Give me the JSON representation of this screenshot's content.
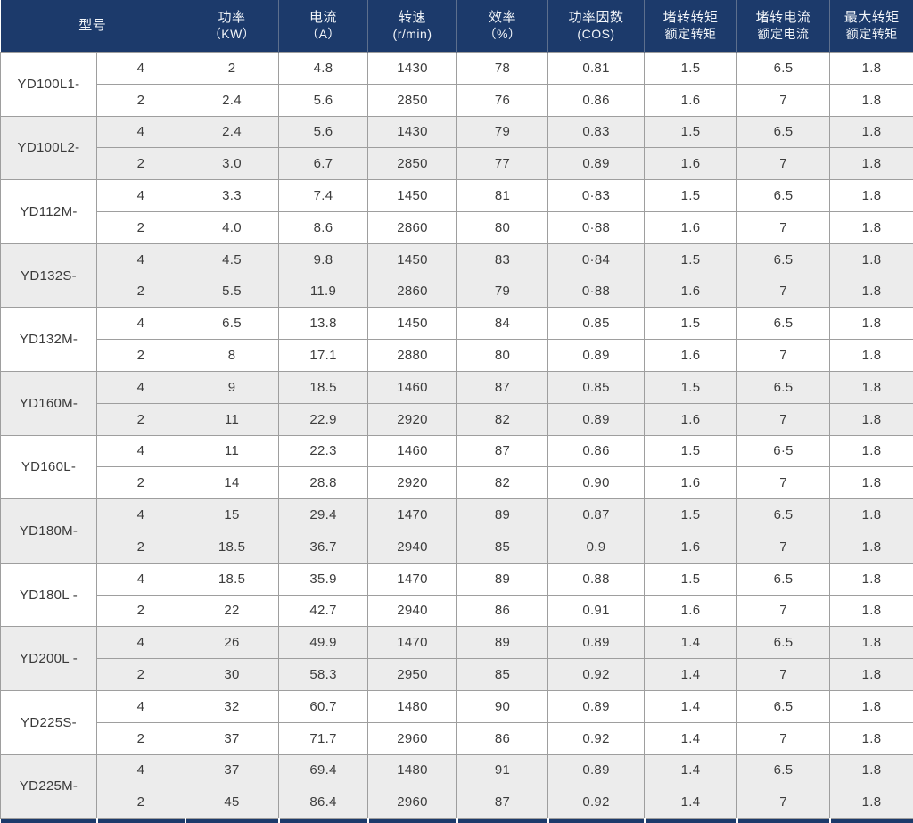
{
  "colors": {
    "header_bg": "#1c3a6b",
    "header_text": "#f2f5f9",
    "header_divider": "#5d6f8d",
    "alt_row_bg": "#ececec",
    "row_bg": "#ffffff",
    "border": "#9e9e9e",
    "body_text": "#3d3d3d"
  },
  "table": {
    "headers": [
      {
        "line1": "型号",
        "line2": ""
      },
      {
        "line1": "功率",
        "line2": "（KW）"
      },
      {
        "line1": "电流",
        "line2": "（A）"
      },
      {
        "line1": "转速",
        "line2": "(r/min)"
      },
      {
        "line1": "效率",
        "line2": "（%）"
      },
      {
        "line1": "功率因数",
        "line2": "(COS)"
      },
      {
        "line1": "堵转转矩",
        "line2": "额定转矩"
      },
      {
        "line1": "堵转电流",
        "line2": "额定电流"
      },
      {
        "line1": "最大转矩",
        "line2": "额定转矩"
      }
    ],
    "groups": [
      {
        "model": "YD100L1-",
        "rows": [
          {
            "poles": "4",
            "power": "2",
            "current": "4.8",
            "speed": "1430",
            "eff": "78",
            "cos": "0.81",
            "lock_torque": "1.5",
            "lock_current": "6.5",
            "max_torque": "1.8"
          },
          {
            "poles": "2",
            "power": "2.4",
            "current": "5.6",
            "speed": "2850",
            "eff": "76",
            "cos": "0.86",
            "lock_torque": "1.6",
            "lock_current": "7",
            "max_torque": "1.8"
          }
        ]
      },
      {
        "model": "YD100L2-",
        "rows": [
          {
            "poles": "4",
            "power": "2.4",
            "current": "5.6",
            "speed": "1430",
            "eff": "79",
            "cos": "0.83",
            "lock_torque": "1.5",
            "lock_current": "6.5",
            "max_torque": "1.8"
          },
          {
            "poles": "2",
            "power": "3.0",
            "current": "6.7",
            "speed": "2850",
            "eff": "77",
            "cos": "0.89",
            "lock_torque": "1.6",
            "lock_current": "7",
            "max_torque": "1.8"
          }
        ]
      },
      {
        "model": "YD112M-",
        "rows": [
          {
            "poles": "4",
            "power": "3.3",
            "current": "7.4",
            "speed": "1450",
            "eff": "81",
            "cos": "0·83",
            "lock_torque": "1.5",
            "lock_current": "6.5",
            "max_torque": "1.8"
          },
          {
            "poles": "2",
            "power": "4.0",
            "current": "8.6",
            "speed": "2860",
            "eff": "80",
            "cos": "0·88",
            "lock_torque": "1.6",
            "lock_current": "7",
            "max_torque": "1.8"
          }
        ]
      },
      {
        "model": "YD132S-",
        "rows": [
          {
            "poles": "4",
            "power": "4.5",
            "current": "9.8",
            "speed": "1450",
            "eff": "83",
            "cos": "0·84",
            "lock_torque": "1.5",
            "lock_current": "6.5",
            "max_torque": "1.8"
          },
          {
            "poles": "2",
            "power": "5.5",
            "current": "11.9",
            "speed": "2860",
            "eff": "79",
            "cos": "0·88",
            "lock_torque": "1.6",
            "lock_current": "7",
            "max_torque": "1.8"
          }
        ]
      },
      {
        "model": "YD132M-",
        "rows": [
          {
            "poles": "4",
            "power": "6.5",
            "current": "13.8",
            "speed": "1450",
            "eff": "84",
            "cos": "0.85",
            "lock_torque": "1.5",
            "lock_current": "6.5",
            "max_torque": "1.8"
          },
          {
            "poles": "2",
            "power": "8",
            "current": "17.1",
            "speed": "2880",
            "eff": "80",
            "cos": "0.89",
            "lock_torque": "1.6",
            "lock_current": "7",
            "max_torque": "1.8"
          }
        ]
      },
      {
        "model": "YD160M-",
        "rows": [
          {
            "poles": "4",
            "power": "9",
            "current": "18.5",
            "speed": "1460",
            "eff": "87",
            "cos": "0.85",
            "lock_torque": "1.5",
            "lock_current": "6.5",
            "max_torque": "1.8"
          },
          {
            "poles": "2",
            "power": "11",
            "current": "22.9",
            "speed": "2920",
            "eff": "82",
            "cos": "0.89",
            "lock_torque": "1.6",
            "lock_current": "7",
            "max_torque": "1.8"
          }
        ]
      },
      {
        "model": "YD160L-",
        "rows": [
          {
            "poles": "4",
            "power": "11",
            "current": "22.3",
            "speed": "1460",
            "eff": "87",
            "cos": "0.86",
            "lock_torque": "1.5",
            "lock_current": "6·5",
            "max_torque": "1.8"
          },
          {
            "poles": "2",
            "power": "14",
            "current": "28.8",
            "speed": "2920",
            "eff": "82",
            "cos": "0.90",
            "lock_torque": "1.6",
            "lock_current": "7",
            "max_torque": "1.8"
          }
        ]
      },
      {
        "model": "YD180M-",
        "rows": [
          {
            "poles": "4",
            "power": "15",
            "current": "29.4",
            "speed": "1470",
            "eff": "89",
            "cos": "0.87",
            "lock_torque": "1.5",
            "lock_current": "6.5",
            "max_torque": "1.8"
          },
          {
            "poles": "2",
            "power": "18.5",
            "current": "36.7",
            "speed": "2940",
            "eff": "85",
            "cos": "0.9",
            "lock_torque": "1.6",
            "lock_current": "7",
            "max_torque": "1.8"
          }
        ]
      },
      {
        "model": "YD180L -",
        "rows": [
          {
            "poles": "4",
            "power": "18.5",
            "current": "35.9",
            "speed": "1470",
            "eff": "89",
            "cos": "0.88",
            "lock_torque": "1.5",
            "lock_current": "6.5",
            "max_torque": "1.8"
          },
          {
            "poles": "2",
            "power": "22",
            "current": "42.7",
            "speed": "2940",
            "eff": "86",
            "cos": "0.91",
            "lock_torque": "1.6",
            "lock_current": "7",
            "max_torque": "1.8"
          }
        ]
      },
      {
        "model": "YD200L -",
        "rows": [
          {
            "poles": "4",
            "power": "26",
            "current": "49.9",
            "speed": "1470",
            "eff": "89",
            "cos": "0.89",
            "lock_torque": "1.4",
            "lock_current": "6.5",
            "max_torque": "1.8"
          },
          {
            "poles": "2",
            "power": "30",
            "current": "58.3",
            "speed": "2950",
            "eff": "85",
            "cos": "0.92",
            "lock_torque": "1.4",
            "lock_current": "7",
            "max_torque": "1.8"
          }
        ]
      },
      {
        "model": "YD225S-",
        "rows": [
          {
            "poles": "4",
            "power": "32",
            "current": "60.7",
            "speed": "1480",
            "eff": "90",
            "cos": "0.89",
            "lock_torque": "1.4",
            "lock_current": "6.5",
            "max_torque": "1.8"
          },
          {
            "poles": "2",
            "power": "37",
            "current": "71.7",
            "speed": "2960",
            "eff": "86",
            "cos": "0.92",
            "lock_torque": "1.4",
            "lock_current": "7",
            "max_torque": "1.8"
          }
        ]
      },
      {
        "model": "YD225M-",
        "rows": [
          {
            "poles": "4",
            "power": "37",
            "current": "69.4",
            "speed": "1480",
            "eff": "91",
            "cos": "0.89",
            "lock_torque": "1.4",
            "lock_current": "6.5",
            "max_torque": "1.8"
          },
          {
            "poles": "2",
            "power": "45",
            "current": "86.4",
            "speed": "2960",
            "eff": "87",
            "cos": "0.92",
            "lock_torque": "1.4",
            "lock_current": "7",
            "max_torque": "1.8"
          }
        ]
      }
    ]
  }
}
